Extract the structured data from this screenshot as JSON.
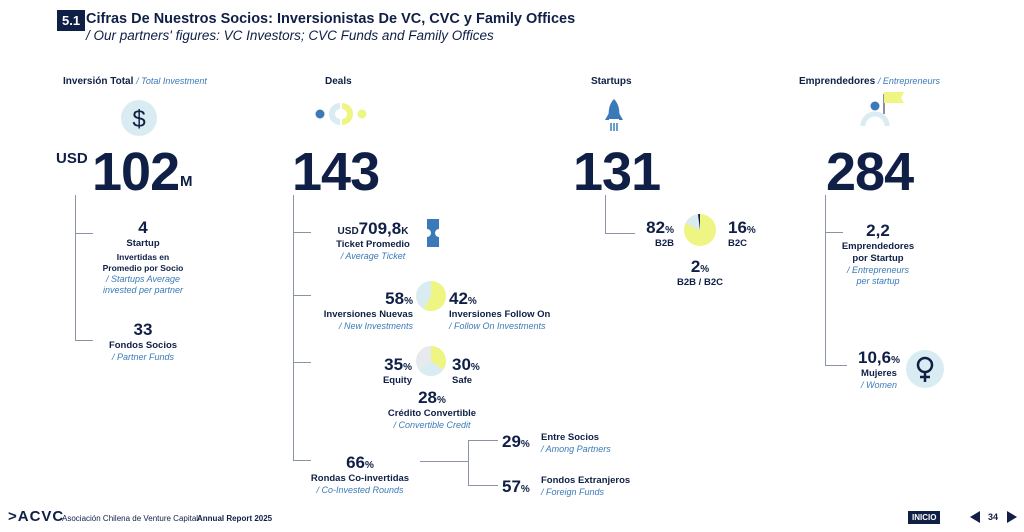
{
  "header": {
    "section": "5.1",
    "title": "Cifras De Nuestros Socios: Inversionistas De VC, CVC y Family Offices",
    "subtitle": "/ Our partners' figures: VC Investors; CVC Funds and Family Offices"
  },
  "investment": {
    "head": "Inversión Total",
    "head_en": "/ Total Investment",
    "prefix": "USD",
    "value": "102",
    "suffix": "M",
    "avg_value": "4",
    "avg_label1": "Startup",
    "avg_label2": "Invertidas en",
    "avg_label3": "Promedio por Socio",
    "avg_en1": "/ Startups Average",
    "avg_en2": "invested per partner",
    "funds_value": "33",
    "funds_label": "Fondos Socios",
    "funds_en": "/ Partner Funds"
  },
  "deals": {
    "head": "Deals",
    "value": "143",
    "ticket_prefix": "USD",
    "ticket_value": "709,8",
    "ticket_suffix": "K",
    "ticket_label": "Ticket Promedio",
    "ticket_en": "/ Average Ticket",
    "new_value": "58",
    "new_label": "Inversiones Nuevas",
    "new_en": "/ New Investments",
    "follow_value": "42",
    "follow_label": "Inversiones Follow On",
    "follow_en": "/ Follow On Investments",
    "equity_value": "35",
    "equity_label": "Equity",
    "safe_value": "30",
    "safe_label": "Safe",
    "conv_value": "28",
    "conv_label": "Crédito Convertible",
    "conv_en": "/ Convertible Credit",
    "co_value": "66",
    "co_label": "Rondas Co-invertidas",
    "co_en": "/ Co-Invested Rounds",
    "among_value": "29",
    "among_label": "Entre Socios",
    "among_en": "/ Among Partners",
    "foreign_value": "57",
    "foreign_label": "Fondos Extranjeros",
    "foreign_en": "/ Foreign Funds",
    "pct": "%"
  },
  "startups": {
    "head": "Startups",
    "value": "131",
    "b2b_value": "82",
    "b2b_label": "B2B",
    "b2c_value": "16",
    "b2c_label": "B2C",
    "both_value": "2",
    "both_label": "B2B / B2C"
  },
  "entrepreneurs": {
    "head": "Emprendedores",
    "head_en": "/ Entrepreneurs",
    "value": "284",
    "per_value": "2,2",
    "per_label1": "Emprendedores",
    "per_label2": "por Startup",
    "per_en1": "/ Entrepreneurs",
    "per_en2": "per startup",
    "women_value": "10,6",
    "women_label": "Mujeres",
    "women_en": "/ Women"
  },
  "footer": {
    "logo": ">ACVC",
    "org": "Asociación Chilena de Venture Capital",
    "report": "Annual Report 2025",
    "home": "INICIO",
    "page": "34"
  },
  "colors": {
    "navy": "#0f1f45",
    "blue": "#3a7ab8",
    "yellow": "#eef582",
    "light": "#d9ecf2"
  }
}
